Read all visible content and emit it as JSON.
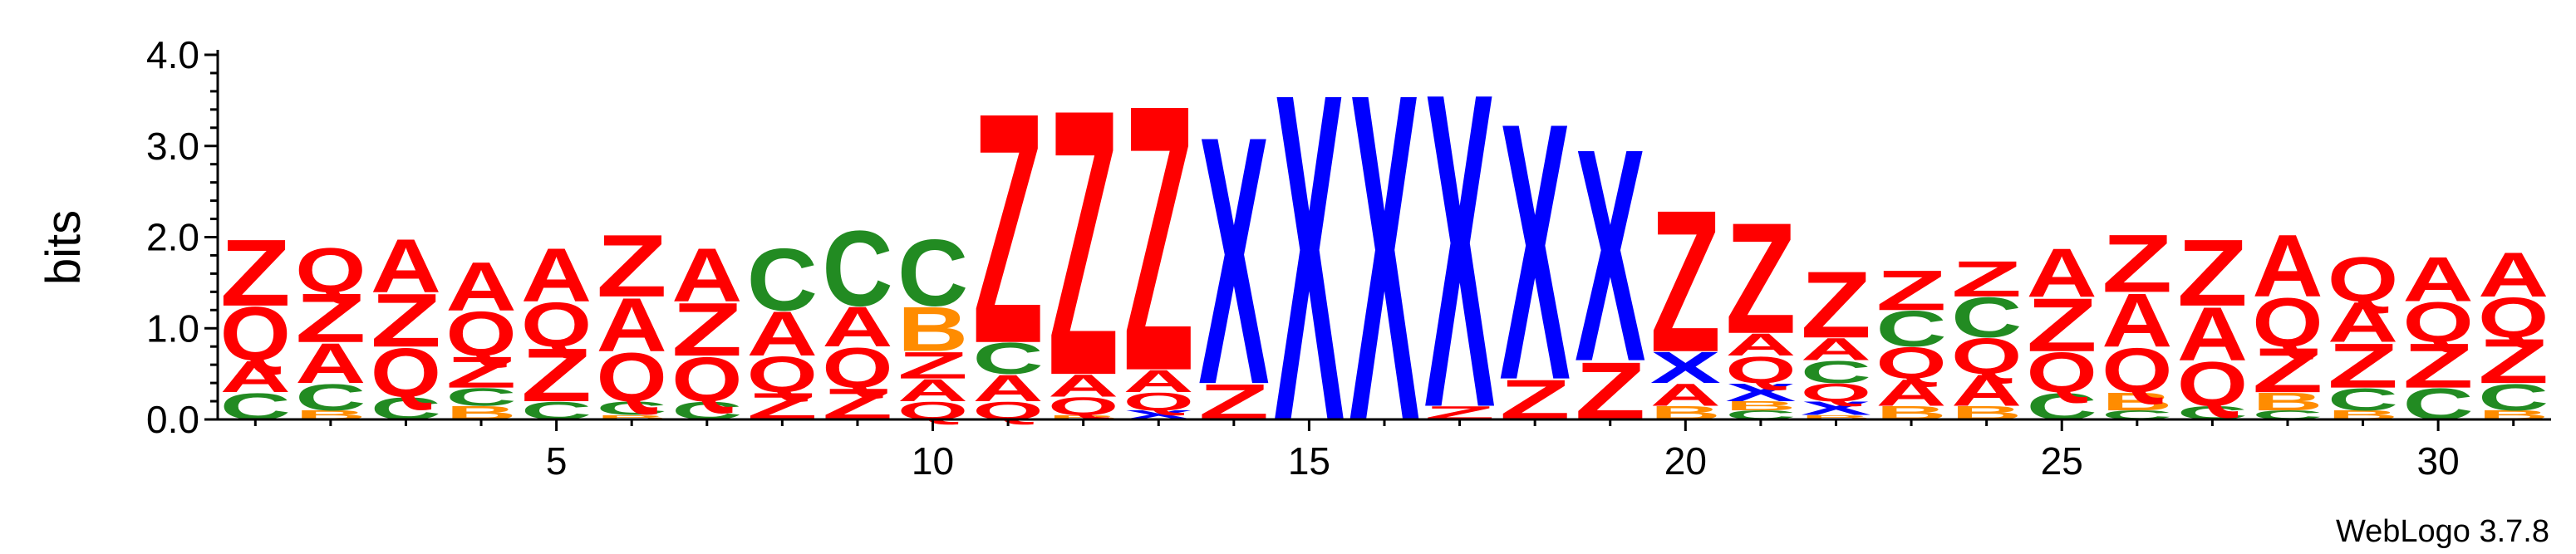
{
  "colors": {
    "Z": "#ff0000",
    "Q": "#ff0000",
    "A": "#ff0000",
    "X": "#0000ff",
    "C": "#228b22",
    "B": "#ff8c00"
  },
  "credit": "WebLogo 3.7.8",
  "chart_data": {
    "type": "sequence-logo",
    "ylabel": "bits",
    "ylim": [
      0,
      4.0
    ],
    "yticks": [
      "0.0",
      "1.0",
      "2.0",
      "3.0",
      "4.0"
    ],
    "x_range": [
      1,
      31
    ],
    "xticks": [
      5,
      10,
      15,
      20,
      25,
      30
    ],
    "positions": [
      {
        "pos": 1,
        "stack": [
          [
            "C",
            0.3
          ],
          [
            "A",
            0.35
          ],
          [
            "Q",
            0.6
          ],
          [
            "Z",
            0.75
          ]
        ]
      },
      {
        "pos": 2,
        "stack": [
          [
            "B",
            0.1
          ],
          [
            "C",
            0.3
          ],
          [
            "A",
            0.45
          ],
          [
            "Z",
            0.55
          ],
          [
            "Q",
            0.5
          ]
        ]
      },
      {
        "pos": 3,
        "stack": [
          [
            "C",
            0.25
          ],
          [
            "Q",
            0.55
          ],
          [
            "Z",
            0.6
          ],
          [
            "A",
            0.6
          ]
        ]
      },
      {
        "pos": 4,
        "stack": [
          [
            "B",
            0.15
          ],
          [
            "C",
            0.2
          ],
          [
            "Z",
            0.35
          ],
          [
            "Q",
            0.5
          ],
          [
            "A",
            0.55
          ]
        ]
      },
      {
        "pos": 5,
        "stack": [
          [
            "C",
            0.2
          ],
          [
            "Z",
            0.6
          ],
          [
            "Q",
            0.5
          ],
          [
            "A",
            0.6
          ]
        ]
      },
      {
        "pos": 6,
        "stack": [
          [
            "B",
            0.05
          ],
          [
            "C",
            0.15
          ],
          [
            "Q",
            0.55
          ],
          [
            "A",
            0.6
          ],
          [
            "Z",
            0.7
          ]
        ]
      },
      {
        "pos": 7,
        "stack": [
          [
            "C",
            0.2
          ],
          [
            "Q",
            0.5
          ],
          [
            "Z",
            0.6
          ],
          [
            "A",
            0.6
          ]
        ]
      },
      {
        "pos": 8,
        "stack": [
          [
            "Z",
            0.3
          ],
          [
            "Q",
            0.4
          ],
          [
            "A",
            0.5
          ],
          [
            "C",
            0.7
          ]
        ]
      },
      {
        "pos": 9,
        "stack": [
          [
            "Z",
            0.35
          ],
          [
            "Q",
            0.45
          ],
          [
            "A",
            0.45
          ],
          [
            "C",
            0.85
          ]
        ]
      },
      {
        "pos": 10,
        "stack": [
          [
            "Q",
            0.2
          ],
          [
            "A",
            0.25
          ],
          [
            "Z",
            0.3
          ],
          [
            "B",
            0.5
          ],
          [
            "C",
            0.75
          ]
        ]
      },
      {
        "pos": 11,
        "stack": [
          [
            "Q",
            0.2
          ],
          [
            "A",
            0.3
          ],
          [
            "C",
            0.35
          ],
          [
            "Z",
            2.6
          ]
        ]
      },
      {
        "pos": 12,
        "stack": [
          [
            "B",
            0.05
          ],
          [
            "Q",
            0.2
          ],
          [
            "A",
            0.25
          ],
          [
            "Z",
            3.0
          ]
        ]
      },
      {
        "pos": 13,
        "stack": [
          [
            "X",
            0.1
          ],
          [
            "Q",
            0.2
          ],
          [
            "A",
            0.25
          ],
          [
            "Z",
            3.0
          ]
        ]
      },
      {
        "pos": 14,
        "stack": [
          [
            "Z",
            0.4
          ],
          [
            "X",
            2.8
          ]
        ]
      },
      {
        "pos": 15,
        "stack": [
          [
            "X",
            3.7
          ]
        ]
      },
      {
        "pos": 16,
        "stack": [
          [
            "X",
            3.7
          ]
        ]
      },
      {
        "pos": 17,
        "stack": [
          [
            "Z",
            0.15
          ],
          [
            "X",
            3.55
          ]
        ]
      },
      {
        "pos": 18,
        "stack": [
          [
            "Z",
            0.45
          ],
          [
            "X",
            2.9
          ]
        ]
      },
      {
        "pos": 19,
        "stack": [
          [
            "Z",
            0.65
          ],
          [
            "X",
            2.4
          ]
        ]
      },
      {
        "pos": 20,
        "stack": [
          [
            "B",
            0.15
          ],
          [
            "A",
            0.25
          ],
          [
            "X",
            0.35
          ],
          [
            "Z",
            1.6
          ]
        ]
      },
      {
        "pos": 21,
        "stack": [
          [
            "C",
            0.1
          ],
          [
            "B",
            0.1
          ],
          [
            "X",
            0.2
          ],
          [
            "Q",
            0.3
          ],
          [
            "A",
            0.25
          ],
          [
            "Z",
            1.25
          ]
        ]
      },
      {
        "pos": 22,
        "stack": [
          [
            "B",
            0.05
          ],
          [
            "X",
            0.15
          ],
          [
            "Q",
            0.2
          ],
          [
            "C",
            0.25
          ],
          [
            "A",
            0.25
          ],
          [
            "Z",
            0.75
          ]
        ]
      },
      {
        "pos": 23,
        "stack": [
          [
            "B",
            0.15
          ],
          [
            "A",
            0.3
          ],
          [
            "Q",
            0.35
          ],
          [
            "C",
            0.4
          ],
          [
            "Z",
            0.45
          ]
        ]
      },
      {
        "pos": 24,
        "stack": [
          [
            "B",
            0.15
          ],
          [
            "A",
            0.35
          ],
          [
            "Q",
            0.4
          ],
          [
            "C",
            0.45
          ],
          [
            "Z",
            0.4
          ]
        ]
      },
      {
        "pos": 25,
        "stack": [
          [
            "C",
            0.3
          ],
          [
            "Q",
            0.45
          ],
          [
            "Z",
            0.6
          ],
          [
            "A",
            0.55
          ]
        ]
      },
      {
        "pos": 26,
        "stack": [
          [
            "C",
            0.1
          ],
          [
            "B",
            0.2
          ],
          [
            "Q",
            0.5
          ],
          [
            "A",
            0.6
          ],
          [
            "Z",
            0.65
          ]
        ]
      },
      {
        "pos": 27,
        "stack": [
          [
            "C",
            0.15
          ],
          [
            "Q",
            0.5
          ],
          [
            "A",
            0.6
          ],
          [
            "Z",
            0.75
          ]
        ]
      },
      {
        "pos": 28,
        "stack": [
          [
            "C",
            0.1
          ],
          [
            "B",
            0.2
          ],
          [
            "Z",
            0.5
          ],
          [
            "Q",
            0.55
          ],
          [
            "A",
            0.7
          ]
        ]
      },
      {
        "pos": 29,
        "stack": [
          [
            "B",
            0.1
          ],
          [
            "C",
            0.25
          ],
          [
            "Z",
            0.5
          ],
          [
            "A",
            0.45
          ],
          [
            "Q",
            0.5
          ]
        ]
      },
      {
        "pos": 30,
        "stack": [
          [
            "C",
            0.35
          ],
          [
            "Z",
            0.5
          ],
          [
            "Q",
            0.45
          ],
          [
            "A",
            0.5
          ]
        ]
      },
      {
        "pos": 31,
        "stack": [
          [
            "B",
            0.1
          ],
          [
            "C",
            0.3
          ],
          [
            "Z",
            0.5
          ],
          [
            "Q",
            0.45
          ],
          [
            "A",
            0.5
          ]
        ]
      }
    ]
  }
}
